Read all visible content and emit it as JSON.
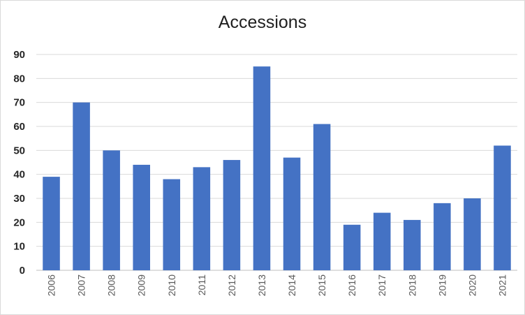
{
  "chart_data": {
    "type": "bar",
    "title": "Accessions",
    "xlabel": "",
    "ylabel": "",
    "categories": [
      "2006",
      "2007",
      "2008",
      "2009",
      "2010",
      "2011",
      "2012",
      "2013",
      "2014",
      "2015",
      "2016",
      "2017",
      "2018",
      "2019",
      "2020",
      "2021"
    ],
    "values": [
      39,
      70,
      50,
      44,
      38,
      43,
      46,
      85,
      47,
      61,
      19,
      24,
      21,
      28,
      30,
      52
    ],
    "ylim": [
      0,
      90
    ],
    "yticks": [
      "0",
      "10",
      "20",
      "30",
      "40",
      "50",
      "60",
      "70",
      "80",
      "90"
    ],
    "grid": true,
    "legend": "none",
    "bar_color": "#4472c4"
  }
}
